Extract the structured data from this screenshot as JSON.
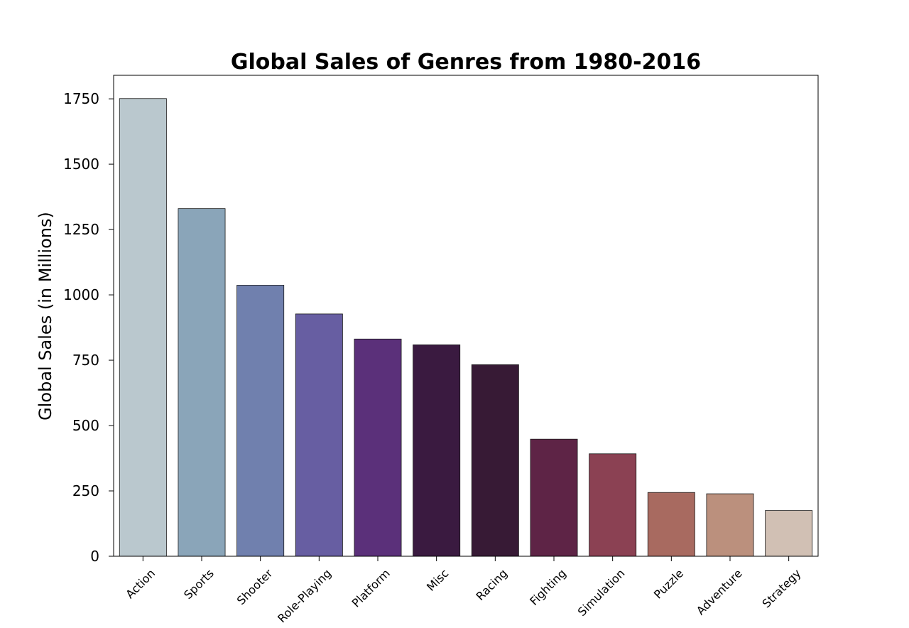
{
  "chart_data": {
    "type": "bar",
    "title": "Global Sales of Genres from 1980-2016",
    "xlabel": "",
    "ylabel": "Global Sales (in Millions)",
    "ylim": [
      0,
      1840
    ],
    "yticks": [
      0,
      250,
      500,
      750,
      1000,
      1250,
      1500,
      1750
    ],
    "grid": false,
    "categories": [
      "Action",
      "Sports",
      "Shooter",
      "Role-Playing",
      "Platform",
      "Misc",
      "Racing",
      "Fighting",
      "Simulation",
      "Puzzle",
      "Adventure",
      "Strategy"
    ],
    "values": [
      1751,
      1330,
      1037,
      927,
      831,
      809,
      733,
      448,
      392,
      244,
      239,
      175
    ],
    "colors": [
      "#bac8ce",
      "#8aa5b9",
      "#7080ae",
      "#675ea2",
      "#5b307a",
      "#3a1a40",
      "#371a35",
      "#5e2446",
      "#8b4153",
      "#a86a60",
      "#bb907d",
      "#d1c0b4"
    ]
  }
}
